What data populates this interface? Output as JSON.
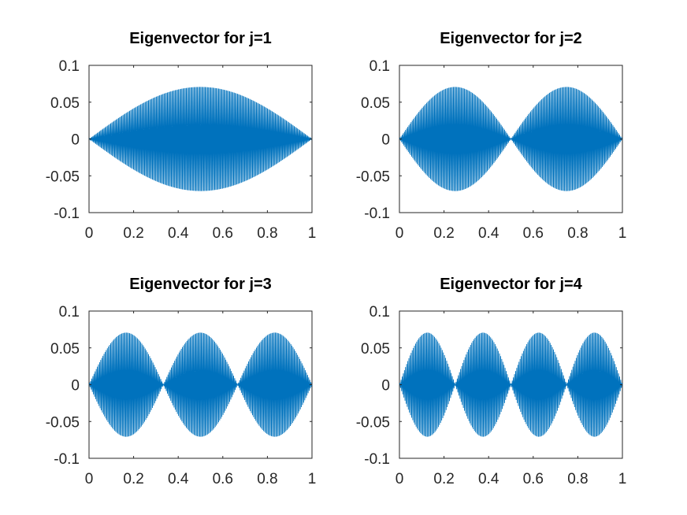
{
  "chart_data": [
    {
      "type": "line",
      "title": "Eigenvector for j=1",
      "mode": 1,
      "series_color": "#0072BD",
      "xlim": [
        0,
        1
      ],
      "ylim": [
        -0.1,
        0.1
      ],
      "xticks": [
        0,
        0.2,
        0.4,
        0.6,
        0.8,
        1
      ],
      "xtick_labels": [
        "0",
        "0.2",
        "0.4",
        "0.6",
        "0.8",
        "1"
      ],
      "yticks": [
        -0.1,
        -0.05,
        0,
        0.05,
        0.1
      ],
      "ytick_labels": [
        "-0.1",
        "-0.05",
        "0",
        "0.05",
        "0.1"
      ],
      "envelope_amplitude": 0.0707,
      "series": [
        {
          "description": "rapidly alternating sign, envelope 0.0707*|sin(pi*x)|"
        }
      ]
    },
    {
      "type": "line",
      "title": "Eigenvector for j=2",
      "mode": 2,
      "series_color": "#0072BD",
      "xlim": [
        0,
        1
      ],
      "ylim": [
        -0.1,
        0.1
      ],
      "xticks": [
        0,
        0.2,
        0.4,
        0.6,
        0.8,
        1
      ],
      "xtick_labels": [
        "0",
        "0.2",
        "0.4",
        "0.6",
        "0.8",
        "1"
      ],
      "yticks": [
        -0.1,
        -0.05,
        0,
        0.05,
        0.1
      ],
      "ytick_labels": [
        "-0.1",
        "-0.05",
        "0",
        "0.05",
        "0.1"
      ],
      "envelope_amplitude": 0.0707,
      "series": [
        {
          "description": "rapidly alternating sign, envelope 0.0707*|sin(2*pi*x)|"
        }
      ]
    },
    {
      "type": "line",
      "title": "Eigenvector for j=3",
      "mode": 3,
      "series_color": "#0072BD",
      "xlim": [
        0,
        1
      ],
      "ylim": [
        -0.1,
        0.1
      ],
      "xticks": [
        0,
        0.2,
        0.4,
        0.6,
        0.8,
        1
      ],
      "xtick_labels": [
        "0",
        "0.2",
        "0.4",
        "0.6",
        "0.8",
        "1"
      ],
      "yticks": [
        -0.1,
        -0.05,
        0,
        0.05,
        0.1
      ],
      "ytick_labels": [
        "-0.1",
        "-0.05",
        "0",
        "0.05",
        "0.1"
      ],
      "envelope_amplitude": 0.0707,
      "series": [
        {
          "description": "rapidly alternating sign, envelope 0.0707*|sin(3*pi*x)|"
        }
      ]
    },
    {
      "type": "line",
      "title": "Eigenvector for j=4",
      "mode": 4,
      "series_color": "#0072BD",
      "xlim": [
        0,
        1
      ],
      "ylim": [
        -0.1,
        0.1
      ],
      "xticks": [
        0,
        0.2,
        0.4,
        0.6,
        0.8,
        1
      ],
      "xtick_labels": [
        "0",
        "0.2",
        "0.4",
        "0.6",
        "0.8",
        "1"
      ],
      "yticks": [
        -0.1,
        -0.05,
        0,
        0.05,
        0.1
      ],
      "ytick_labels": [
        "-0.1",
        "-0.05",
        "0",
        "0.05",
        "0.1"
      ],
      "envelope_amplitude": 0.0707,
      "series": [
        {
          "description": "rapidly alternating sign, envelope 0.0707*|sin(4*pi*x)|"
        }
      ]
    }
  ]
}
